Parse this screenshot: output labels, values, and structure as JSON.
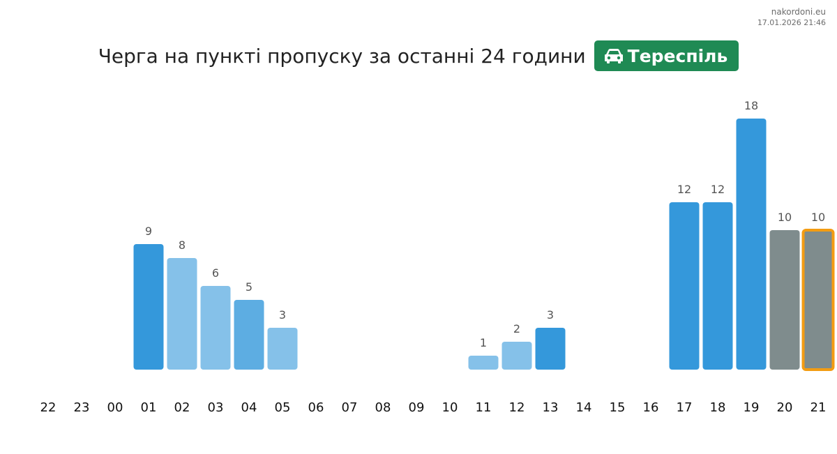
{
  "site": {
    "name": "nakordoni.eu",
    "timestamp": "17.01.2026 21:46"
  },
  "header": {
    "title": "Черга на пункті пропуску за останні 24 години",
    "crossing_name": "Тереспіль",
    "crossing_icon": "car-icon",
    "badge_color": "#1f8a54"
  },
  "colors": {
    "dark": "#3498db",
    "light": "#85c1e9",
    "medium": "#5dade2",
    "gray": "#7f8c8d",
    "highlight": "#f39c12"
  },
  "chart_data": {
    "type": "bar",
    "title": "Черга на пункті пропуску за останні 24 години",
    "xlabel": "",
    "ylabel": "",
    "ylim": [
      0,
      18
    ],
    "grid": false,
    "categories": [
      "22",
      "23",
      "00",
      "01",
      "02",
      "03",
      "04",
      "05",
      "06",
      "07",
      "08",
      "09",
      "10",
      "11",
      "12",
      "13",
      "14",
      "15",
      "16",
      "17",
      "18",
      "19",
      "20",
      "21"
    ],
    "values": [
      null,
      null,
      null,
      9,
      8,
      6,
      5,
      3,
      null,
      null,
      null,
      null,
      null,
      1,
      2,
      3,
      null,
      null,
      null,
      12,
      12,
      18,
      10,
      10
    ],
    "bar_colors": [
      "dark",
      "dark",
      "dark",
      "dark",
      "light",
      "light",
      "medium",
      "light",
      "dark",
      "dark",
      "dark",
      "dark",
      "dark",
      "light",
      "light",
      "dark",
      "dark",
      "dark",
      "dark",
      "dark",
      "dark",
      "dark",
      "gray",
      "gray"
    ],
    "highlighted_category": "21"
  }
}
